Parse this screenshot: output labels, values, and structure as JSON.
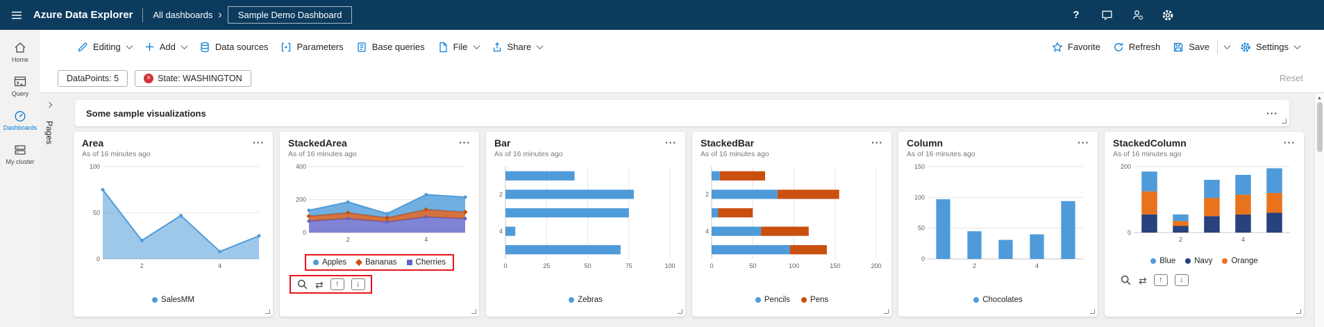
{
  "colors": {
    "topbar_bg": "#0c3b5e",
    "accent": "#0078d4",
    "error_red": "#d13438",
    "annotation_red": "#e8131a",
    "chart_blue": "#4f9bd9",
    "chart_orange": "#ca5010",
    "chart_indigo": "#6264c9",
    "chart_navy": "#27427c",
    "content_bg": "#f0f0f0"
  },
  "topbar": {
    "app_title": "Azure Data Explorer",
    "breadcrumb": "All dashboards",
    "dashboard_title": "Sample Demo Dashboard"
  },
  "toolbar": {
    "editing": "Editing",
    "add": "Add",
    "data_sources": "Data sources",
    "parameters": "Parameters",
    "base_queries": "Base queries",
    "file": "File",
    "share": "Share",
    "favorite": "Favorite",
    "refresh": "Refresh",
    "save": "Save",
    "settings": "Settings"
  },
  "filter_bar": {
    "pills": [
      {
        "label": "DataPoints: 5",
        "error": false
      },
      {
        "label": "State: WASHINGTON",
        "error": true
      }
    ],
    "reset": "Reset"
  },
  "sidebar": {
    "items": [
      {
        "label": "Home",
        "active": false
      },
      {
        "label": "Query",
        "active": false
      },
      {
        "label": "Dashboards",
        "active": true
      },
      {
        "label": "My cluster",
        "active": false
      }
    ]
  },
  "pages_panel": {
    "label": "Pages"
  },
  "section": {
    "title": "Some sample visualizations"
  },
  "icons": {
    "more": "···",
    "swap": "⇄",
    "arrow_up": "↑",
    "arrow_down": "↓",
    "error_x": "×",
    "help": "?",
    "breadcrumb_chevron": "›",
    "scroll_up": "▲"
  },
  "tiles": [
    {
      "title": "Area",
      "subtitle": "As of 16 minutes ago",
      "legend": [
        {
          "label": "SalesMM",
          "color": "#4f9bd9",
          "marker": "circle"
        }
      ]
    },
    {
      "title": "StackedArea",
      "subtitle": "As of 16 minutes ago",
      "legend": [
        {
          "label": "Apples",
          "color": "#4f9bd9",
          "marker": "circle"
        },
        {
          "label": "Bananas",
          "color": "#ca5010",
          "marker": "diamond"
        },
        {
          "label": "Cherries",
          "color": "#6264c9",
          "marker": "square"
        }
      ]
    },
    {
      "title": "Bar",
      "subtitle": "As of 16 minutes ago",
      "legend": [
        {
          "label": "Zebras",
          "color": "#4f9bd9",
          "marker": "circle"
        }
      ]
    },
    {
      "title": "StackedBar",
      "subtitle": "As of 16 minutes ago",
      "legend": [
        {
          "label": "Pencils",
          "color": "#4f9bd9",
          "marker": "circle"
        },
        {
          "label": "Pens",
          "color": "#ca5010",
          "marker": "circle"
        }
      ]
    },
    {
      "title": "Column",
      "subtitle": "As of 16 minutes ago",
      "legend": [
        {
          "label": "Chocolates",
          "color": "#4f9bd9",
          "marker": "circle"
        }
      ]
    },
    {
      "title": "StackedColumn",
      "subtitle": "As of 16 minutes ago",
      "legend": [
        {
          "label": "Blue",
          "color": "#4f9bd9",
          "marker": "circle"
        },
        {
          "label": "Navy",
          "color": "#27427c",
          "marker": "circle"
        },
        {
          "label": "Orange",
          "color": "#e8731c",
          "marker": "circle"
        }
      ]
    }
  ],
  "chart_data": [
    {
      "type": "area",
      "x": [
        1,
        2,
        3,
        4,
        5
      ],
      "cat_ticks": [
        2,
        4
      ],
      "ylim": [
        0,
        100
      ],
      "yticks": [
        0,
        50,
        100
      ],
      "series": [
        {
          "name": "SalesMM",
          "color": "#4f9bd9",
          "marker": "circle",
          "values": [
            75,
            20,
            47,
            8,
            25
          ]
        }
      ]
    },
    {
      "type": "stacked-area",
      "x": [
        1,
        2,
        3,
        4,
        5
      ],
      "cat_ticks": [
        2,
        4
      ],
      "ylim": [
        0,
        400
      ],
      "yticks": [
        0,
        200,
        400
      ],
      "stack_order": "bottom-to-top",
      "series": [
        {
          "name": "Cherries",
          "color": "#6264c9",
          "marker": "square",
          "values": [
            70,
            85,
            65,
            95,
            85
          ]
        },
        {
          "name": "Bananas",
          "color": "#ca5010",
          "marker": "diamond",
          "values": [
            30,
            35,
            25,
            45,
            40
          ]
        },
        {
          "name": "Apples",
          "color": "#4f9bd9",
          "marker": "circle",
          "values": [
            35,
            65,
            25,
            90,
            90
          ]
        }
      ]
    },
    {
      "type": "bar",
      "categories": [
        1,
        2,
        3,
        4,
        5
      ],
      "cat_ticks": [
        2,
        4
      ],
      "xlim": [
        0,
        100
      ],
      "xticks": [
        0,
        25,
        50,
        75,
        100
      ],
      "series": [
        {
          "name": "Zebras",
          "color": "#4f9bd9",
          "values": [
            42,
            78,
            75,
            6,
            70
          ]
        }
      ]
    },
    {
      "type": "stacked-bar",
      "categories": [
        1,
        2,
        3,
        4,
        5
      ],
      "cat_ticks": [
        2,
        4
      ],
      "xlim": [
        0,
        200
      ],
      "xticks": [
        0,
        50,
        100,
        150,
        200
      ],
      "series": [
        {
          "name": "Pencils",
          "color": "#4f9bd9",
          "values": [
            10,
            80,
            8,
            60,
            95
          ]
        },
        {
          "name": "Pens",
          "color": "#ca5010",
          "values": [
            55,
            75,
            42,
            58,
            45
          ]
        }
      ]
    },
    {
      "type": "column",
      "categories": [
        1,
        2,
        3,
        4,
        5
      ],
      "cat_ticks": [
        2,
        4
      ],
      "ylim": [
        0,
        150
      ],
      "yticks": [
        0,
        50,
        100,
        150
      ],
      "series": [
        {
          "name": "Chocolates",
          "color": "#4f9bd9",
          "values": [
            97,
            45,
            31,
            40,
            94
          ]
        }
      ]
    },
    {
      "type": "stacked-column",
      "categories": [
        1,
        2,
        3,
        4,
        5
      ],
      "cat_ticks": [
        2,
        4
      ],
      "ylim": [
        0,
        200
      ],
      "yticks": [
        0,
        200
      ],
      "stack_order": "bottom-to-top",
      "series": [
        {
          "name": "Navy",
          "color": "#27427c",
          "values": [
            55,
            20,
            50,
            55,
            60
          ]
        },
        {
          "name": "Orange",
          "color": "#e8731c",
          "values": [
            70,
            15,
            55,
            60,
            60
          ]
        },
        {
          "name": "Blue",
          "color": "#4f9bd9",
          "values": [
            60,
            20,
            55,
            60,
            75
          ]
        }
      ]
    }
  ]
}
